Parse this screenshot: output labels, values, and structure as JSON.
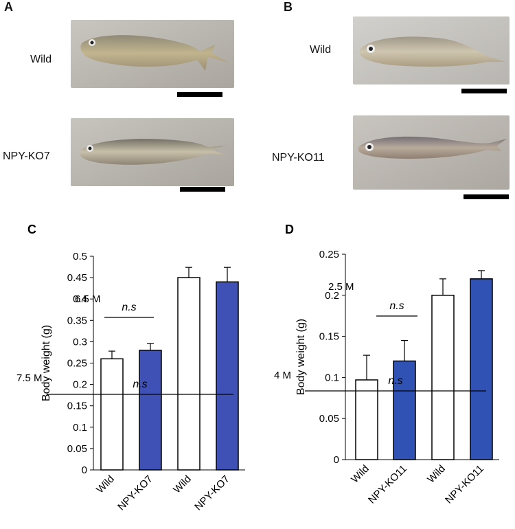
{
  "panels": {
    "a": {
      "letter": "A",
      "photos": [
        {
          "label": "Wild",
          "fish": "wild-zebrafish"
        },
        {
          "label": "NPY-KO7",
          "fish": "npy-ko7-zebrafish"
        }
      ]
    },
    "b": {
      "letter": "B",
      "photos": [
        {
          "label": "Wild",
          "fish": "wild-zebrafish"
        },
        {
          "label": "NPY-KO11",
          "fish": "npy-ko11-zebrafish"
        }
      ]
    }
  },
  "colors": {
    "wild_bar": "#ffffff",
    "ko_bar": "#3f51b5",
    "ko_bar_b": "#2f52b4",
    "axis": "#000000",
    "photo_bg": "#bdbab4"
  },
  "chart_data": [
    {
      "panel": "C",
      "type": "bar",
      "ylabel": "Body weight (g)",
      "ylim": [
        0,
        0.5
      ],
      "yticks": [
        "0",
        "0.05",
        "0.1",
        "0.15",
        "0.2",
        "0.25",
        "0.3",
        "0.35",
        "0.4",
        "0.45",
        "0.5"
      ],
      "categories": [
        "Wild",
        "NPY-KO7",
        "Wild",
        "NPY-KO7"
      ],
      "values": [
        0.26,
        0.28,
        0.45,
        0.44
      ],
      "errors": [
        0.018,
        0.016,
        0.024,
        0.034
      ],
      "groups": [
        {
          "age": "6.5 M",
          "significance": "n.s"
        },
        {
          "age": "7.5 M",
          "significance": "n.s"
        }
      ],
      "grid": false
    },
    {
      "panel": "D",
      "type": "bar",
      "ylabel": "Body weight (g)",
      "ylim": [
        0,
        0.25
      ],
      "yticks": [
        "0",
        "0.05",
        "0.1",
        "0.15",
        "0.2",
        "0.25"
      ],
      "categories": [
        "Wild",
        "NPY-KO11",
        "Wild",
        "NPY-KO11"
      ],
      "values": [
        0.097,
        0.12,
        0.2,
        0.22
      ],
      "errors": [
        0.03,
        0.025,
        0.02,
        0.01
      ],
      "groups": [
        {
          "age": "2.5 M",
          "significance": "n.s"
        },
        {
          "age": "4 M",
          "significance": "n.s"
        }
      ],
      "grid": false
    }
  ]
}
